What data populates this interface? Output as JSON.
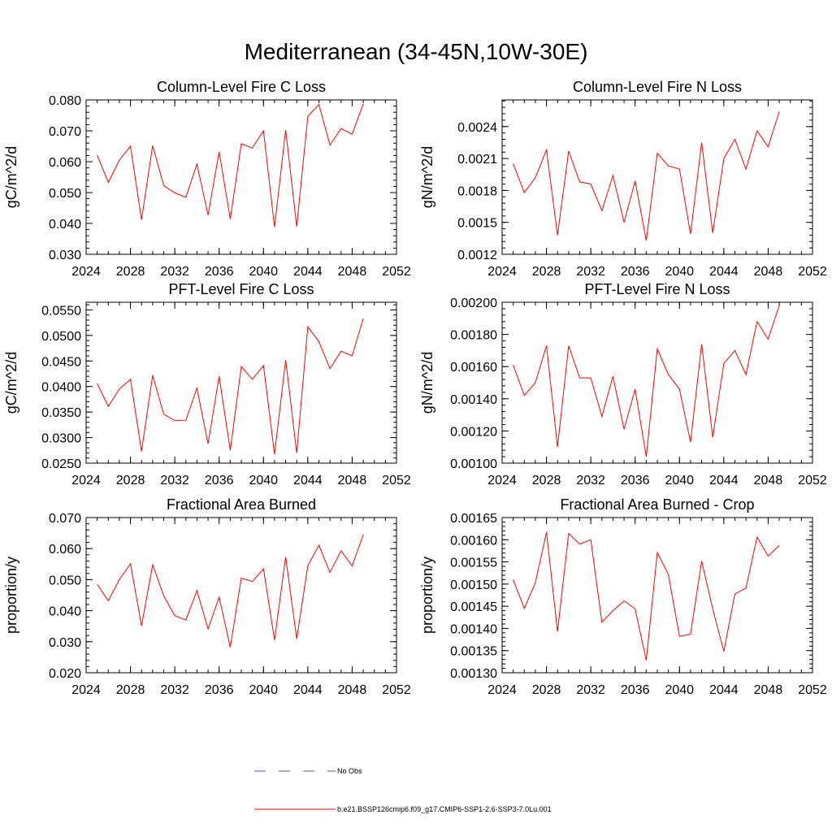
{
  "title": "Mediterranean (34-45N,10W-30E)",
  "legend": {
    "obs_label": "No Obs",
    "model_label": "b.e21.BSSP126cmip6.f09_g17.CMIP6-SSP1-2.6-SSP3-7.0Lu.001",
    "colors": {
      "obs": "#5050a0",
      "model": "#ff0000"
    }
  },
  "chart_data": [
    {
      "type": "line",
      "title": "Column-Level Fire C Loss",
      "ylabel": "gC/m^2/d",
      "xlim": [
        2024,
        2052
      ],
      "ylim": [
        0.03,
        0.08
      ],
      "xticks": [
        2024,
        2028,
        2032,
        2036,
        2040,
        2044,
        2048,
        2052
      ],
      "yticks": [
        "0.030",
        "0.040",
        "0.050",
        "0.060",
        "0.070",
        "0.080"
      ],
      "x": [
        2025,
        2026,
        2027,
        2028,
        2029,
        2030,
        2031,
        2032,
        2033,
        2034,
        2035,
        2036,
        2037,
        2038,
        2039,
        2040,
        2041,
        2042,
        2043,
        2044,
        2045,
        2046,
        2047,
        2048,
        2049
      ],
      "series": [
        {
          "values": [
            0.0621,
            0.0533,
            0.0605,
            0.065,
            0.0412,
            0.0652,
            0.0523,
            0.0499,
            0.0485,
            0.0592,
            0.0427,
            0.0632,
            0.0414,
            0.0658,
            0.0644,
            0.07,
            0.0388,
            0.0703,
            0.039,
            0.0747,
            0.0785,
            0.0654,
            0.0707,
            0.0689,
            0.0787
          ]
        }
      ]
    },
    {
      "type": "line",
      "title": "Column-Level Fire N Loss",
      "ylabel": "gN/m^2/d",
      "xlim": [
        2024,
        2052
      ],
      "ylim": [
        0.0012,
        0.00265
      ],
      "xticks": [
        2024,
        2028,
        2032,
        2036,
        2040,
        2044,
        2048,
        2052
      ],
      "yticks": [
        "0.0012",
        "0.0015",
        "0.0018",
        "0.0021",
        "0.0024"
      ],
      "x": [
        2025,
        2026,
        2027,
        2028,
        2029,
        2030,
        2031,
        2032,
        2033,
        2034,
        2035,
        2036,
        2037,
        2038,
        2039,
        2040,
        2041,
        2042,
        2043,
        2044,
        2045,
        2046,
        2047,
        2048,
        2049
      ],
      "series": [
        {
          "values": [
            0.00205,
            0.00178,
            0.00192,
            0.00218,
            0.00138,
            0.00217,
            0.00188,
            0.00186,
            0.00161,
            0.00194,
            0.0015,
            0.00189,
            0.00133,
            0.00215,
            0.00203,
            0.002,
            0.00139,
            0.00225,
            0.0014,
            0.0021,
            0.00228,
            0.002,
            0.00236,
            0.00221,
            0.00254
          ]
        }
      ]
    },
    {
      "type": "line",
      "title": "PFT-Level Fire C Loss",
      "ylabel": "gC/m^2/d",
      "xlim": [
        2024,
        2052
      ],
      "ylim": [
        0.025,
        0.0565
      ],
      "xticks": [
        2024,
        2028,
        2032,
        2036,
        2040,
        2044,
        2048,
        2052
      ],
      "yticks": [
        "0.0250",
        "0.0300",
        "0.0350",
        "0.0400",
        "0.0450",
        "0.0500",
        "0.0550"
      ],
      "x": [
        2025,
        2026,
        2027,
        2028,
        2029,
        2030,
        2031,
        2032,
        2033,
        2034,
        2035,
        2036,
        2037,
        2038,
        2039,
        2040,
        2041,
        2042,
        2043,
        2044,
        2045,
        2046,
        2047,
        2048,
        2049
      ],
      "series": [
        {
          "values": [
            0.0406,
            0.0361,
            0.0395,
            0.0414,
            0.0273,
            0.0422,
            0.0346,
            0.0333,
            0.0334,
            0.0397,
            0.0288,
            0.042,
            0.0275,
            0.0439,
            0.0414,
            0.0441,
            0.0267,
            0.0452,
            0.027,
            0.0517,
            0.0488,
            0.0435,
            0.0469,
            0.046,
            0.0533
          ]
        }
      ]
    },
    {
      "type": "line",
      "title": "PFT-Level Fire N Loss",
      "ylabel": "gN/m^2/d",
      "xlim": [
        2024,
        2052
      ],
      "ylim": [
        0.001,
        0.002
      ],
      "xticks": [
        2024,
        2028,
        2032,
        2036,
        2040,
        2044,
        2048,
        2052
      ],
      "yticks": [
        "0.00100",
        "0.00120",
        "0.00140",
        "0.00160",
        "0.00180",
        "0.00200"
      ],
      "x": [
        2025,
        2026,
        2027,
        2028,
        2029,
        2030,
        2031,
        2032,
        2033,
        2034,
        2035,
        2036,
        2037,
        2038,
        2039,
        2040,
        2041,
        2042,
        2043,
        2044,
        2045,
        2046,
        2047,
        2048,
        2049
      ],
      "series": [
        {
          "values": [
            0.00161,
            0.00142,
            0.0015,
            0.00173,
            0.0011,
            0.00173,
            0.00153,
            0.00153,
            0.00129,
            0.00154,
            0.00121,
            0.00146,
            0.00104,
            0.00171,
            0.00155,
            0.00146,
            0.00113,
            0.00174,
            0.00116,
            0.00162,
            0.0017,
            0.00155,
            0.00188,
            0.00177,
            0.00198
          ]
        }
      ]
    },
    {
      "type": "line",
      "title": "Fractional Area Burned",
      "ylabel": "proportion/y",
      "xlim": [
        2024,
        2052
      ],
      "ylim": [
        0.02,
        0.07
      ],
      "xticks": [
        2024,
        2028,
        2032,
        2036,
        2040,
        2044,
        2048,
        2052
      ],
      "yticks": [
        "0.020",
        "0.030",
        "0.040",
        "0.050",
        "0.060",
        "0.070"
      ],
      "x": [
        2025,
        2026,
        2027,
        2028,
        2029,
        2030,
        2031,
        2032,
        2033,
        2034,
        2035,
        2036,
        2037,
        2038,
        2039,
        2040,
        2041,
        2042,
        2043,
        2044,
        2045,
        2046,
        2047,
        2048,
        2049
      ],
      "series": [
        {
          "values": [
            0.0485,
            0.0432,
            0.05,
            0.0551,
            0.0351,
            0.0548,
            0.0448,
            0.0384,
            0.037,
            0.0465,
            0.0341,
            0.0444,
            0.0282,
            0.0505,
            0.0494,
            0.0535,
            0.0305,
            0.0573,
            0.0309,
            0.0545,
            0.0611,
            0.0523,
            0.0593,
            0.0544,
            0.0645
          ]
        }
      ]
    },
    {
      "type": "line",
      "title": "Fractional Area Burned - Crop",
      "ylabel": "proportion/y",
      "xlim": [
        2024,
        2052
      ],
      "ylim": [
        0.0013,
        0.00165
      ],
      "xticks": [
        2024,
        2028,
        2032,
        2036,
        2040,
        2044,
        2048,
        2052
      ],
      "yticks": [
        "0.00130",
        "0.00135",
        "0.00140",
        "0.00145",
        "0.00150",
        "0.00155",
        "0.00160",
        "0.00165"
      ],
      "x": [
        2025,
        2026,
        2027,
        2028,
        2029,
        2030,
        2031,
        2032,
        2033,
        2034,
        2035,
        2036,
        2037,
        2038,
        2039,
        2040,
        2041,
        2042,
        2043,
        2044,
        2045,
        2046,
        2047,
        2048,
        2049
      ],
      "series": [
        {
          "values": [
            0.00151,
            0.001445,
            0.001503,
            0.001617,
            0.001393,
            0.001614,
            0.00159,
            0.0016,
            0.001414,
            0.00144,
            0.001462,
            0.001444,
            0.001328,
            0.001571,
            0.001522,
            0.001382,
            0.001387,
            0.001552,
            0.001444,
            0.001348,
            0.001478,
            0.001491,
            0.001606,
            0.001563,
            0.001587
          ]
        }
      ]
    }
  ]
}
